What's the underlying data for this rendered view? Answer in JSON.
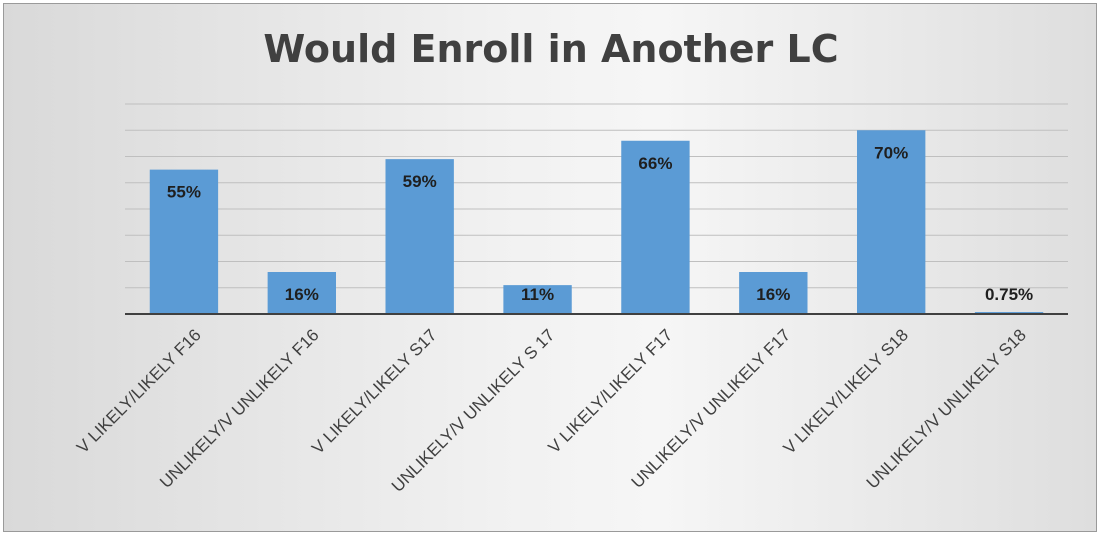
{
  "chart_data": {
    "type": "bar",
    "title": "Would Enroll in Another LC",
    "categories": [
      "V LIKELY/LIKELY F16",
      "UNLIKELY/V UNLIKELY F16",
      "V LIKELY/LIKELY S17",
      "UNLIKELY/V UNLIKELY S 17",
      "V LIKELY/LIKELY F17",
      "UNLIKELY/V UNLIKELY F17",
      "V LIKELY/LIKELY S18",
      "UNLIKELY/V UNLIKELY S18"
    ],
    "values": [
      55,
      16,
      59,
      11,
      66,
      16,
      70,
      0.75
    ],
    "data_labels": [
      "55%",
      "16%",
      "59%",
      "11%",
      "66%",
      "16%",
      "70%",
      "0.75%"
    ],
    "ylim": [
      0,
      80
    ],
    "grid": true,
    "legend": "none",
    "colors": {
      "bar": "#5b9bd5",
      "gridline": "#bfbfbf",
      "axis": "#404040"
    }
  }
}
